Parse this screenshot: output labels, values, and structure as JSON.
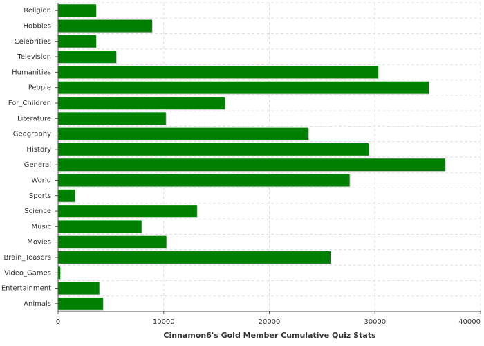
{
  "chart_data": {
    "type": "barh",
    "xlabel": "Cinnamon6's Gold Member Cumulative Quiz Stats",
    "categories": [
      "Religion",
      "Hobbies",
      "Celebrities",
      "Television",
      "Humanities",
      "People",
      "For_Children",
      "Literature",
      "Geography",
      "History",
      "General",
      "World",
      "Sports",
      "Science",
      "Music",
      "Movies",
      "Brain_Teasers",
      "Video_Games",
      "Entertainment",
      "Animals"
    ],
    "values": [
      3600,
      8900,
      3600,
      5500,
      30300,
      35100,
      15800,
      10200,
      23700,
      29400,
      36650,
      27600,
      1600,
      13150,
      7900,
      10250,
      25800,
      200,
      3900,
      4250
    ],
    "color": "#008000",
    "xlim": [
      0,
      40000
    ],
    "xticks": [
      0,
      10000,
      20000,
      30000,
      40000
    ],
    "grid": true
  }
}
